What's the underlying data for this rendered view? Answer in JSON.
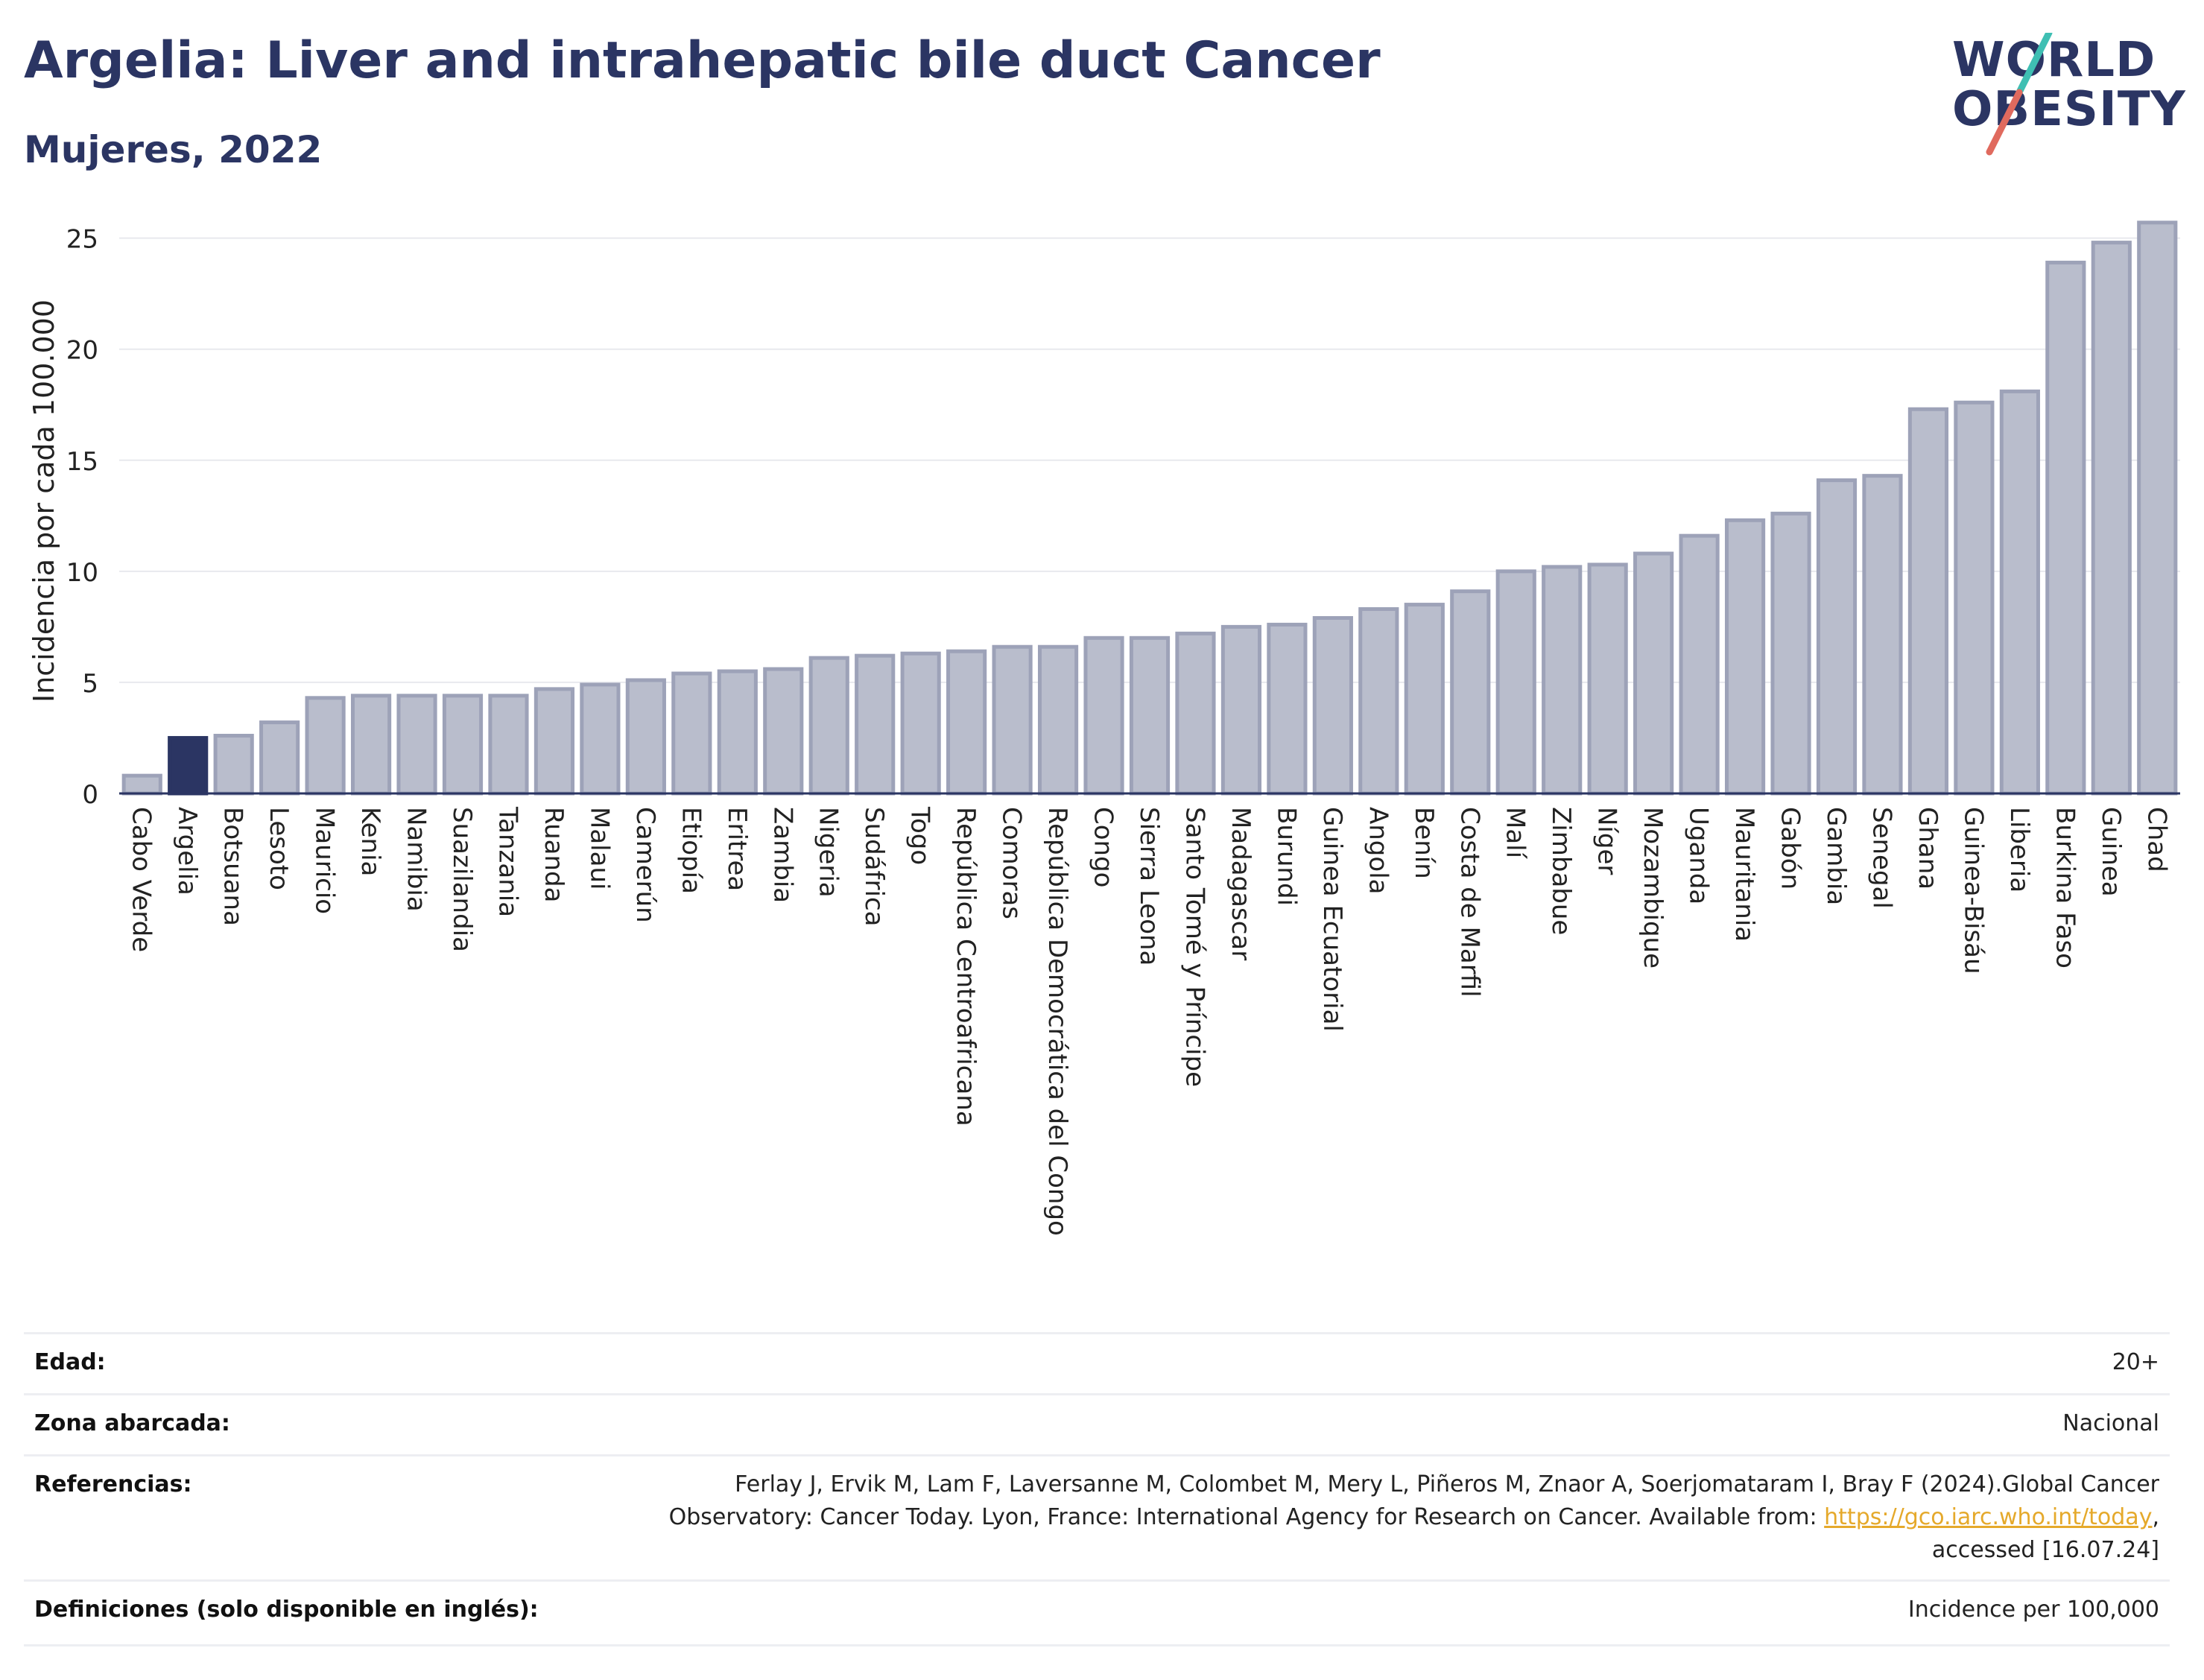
{
  "header": {
    "title": "Argelia: Liver and intrahepatic bile duct Cancer",
    "subtitle": "Mujeres, 2022"
  },
  "logo": {
    "line1": "WORLD",
    "line2": "OBESITY",
    "colors": {
      "slash_top": "#3fbfb3",
      "slash_bottom": "#e06a5e",
      "text": "#2b3563"
    }
  },
  "chart_data": {
    "type": "bar",
    "ylabel": "Incidencia por cada 100.000",
    "xlabel": "",
    "ylim": [
      0,
      27
    ],
    "yticks": [
      0,
      5,
      10,
      15,
      20,
      25
    ],
    "grid": true,
    "highlight": "Argelia",
    "colors": {
      "bar": "#b9bdcc",
      "bar_edge": "#9da2b8",
      "highlight": "#2b3563"
    },
    "categories": [
      "Cabo Verde",
      "Argelia",
      "Botsuana",
      "Lesoto",
      "Mauricio",
      "Kenia",
      "Namibia",
      "Suazilandia",
      "Tanzania",
      "Ruanda",
      "Malaui",
      "Camerún",
      "Etiopía",
      "Eritrea",
      "Zambia",
      "Nigeria",
      "Sudáfrica",
      "Togo",
      "República Centroafricana",
      "Comoras",
      "República Democrática del Congo",
      "Congo",
      "Sierra Leona",
      "Santo Tomé y Príncipe",
      "Madagascar",
      "Burundi",
      "Guinea Ecuatorial",
      "Angola",
      "Benín",
      "Costa de Marfil",
      "Malí",
      "Zimbabue",
      "Níger",
      "Mozambique",
      "Uganda",
      "Mauritania",
      "Gabón",
      "Gambia",
      "Senegal",
      "Ghana",
      "Guinea-Bisáu",
      "Liberia",
      "Burkina Faso",
      "Guinea",
      "Chad"
    ],
    "values": [
      0.8,
      2.5,
      2.6,
      3.2,
      4.3,
      4.4,
      4.4,
      4.4,
      4.4,
      4.7,
      4.9,
      5.1,
      5.4,
      5.5,
      5.6,
      6.1,
      6.2,
      6.3,
      6.4,
      6.6,
      6.6,
      7.0,
      7.0,
      7.2,
      7.5,
      7.6,
      7.9,
      8.3,
      8.5,
      9.1,
      10.0,
      10.2,
      10.3,
      10.8,
      11.6,
      12.3,
      12.6,
      14.1,
      14.3,
      17.3,
      17.6,
      18.1,
      23.9,
      24.8,
      25.7
    ]
  },
  "info": {
    "age_label": "Edad:",
    "age_value": "20+",
    "area_label": "Zona abarcada:",
    "area_value": "Nacional",
    "ref_label": "Referencias:",
    "ref_line1": "Ferlay J, Ervik M, Lam F, Laversanne M, Colombet M, Mery L, Piñeros M, Znaor A, Soerjomataram I, Bray F (2024).Global Cancer",
    "ref_line2_pre": "Observatory: Cancer Today. Lyon, France: International Agency for Research on Cancer. Available from: ",
    "ref_link": "https://gco.iarc.who.int/today",
    "ref_line2_post": ",",
    "ref_line3": "accessed [16.07.24]",
    "def_label": "Definiciones (solo disponible en inglés):",
    "def_value": "Incidence per 100,000"
  }
}
